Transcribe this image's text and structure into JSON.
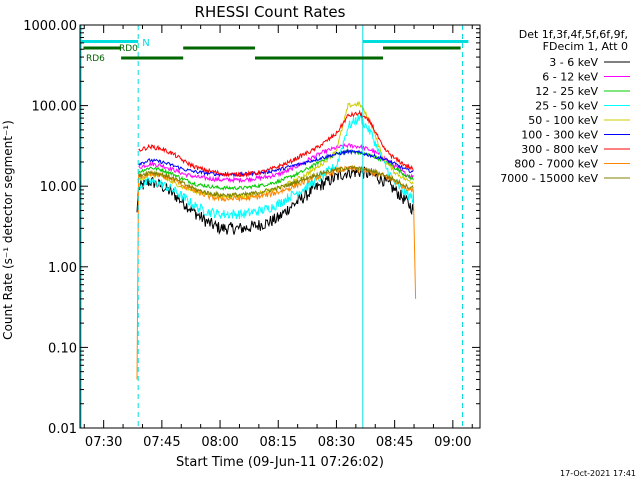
{
  "chart_data": {
    "type": "line",
    "title": "RHESSI Count Rates",
    "xlabel": "Start Time (09-Jun-11 07:26:02)",
    "ylabel": "Count Rate (s⁻¹ detector segment⁻¹)",
    "footer": "17-Oct-2021 17:41",
    "yscale": "log",
    "ylim": [
      0.01,
      1000
    ],
    "xlim_minutes": [
      -6.1,
      97
    ],
    "x_tick_minutes": [
      0,
      15,
      30,
      45,
      60,
      75,
      90
    ],
    "xticks": [
      "07:30",
      "07:45",
      "08:00",
      "08:15",
      "08:30",
      "08:45",
      "09:00"
    ],
    "ytick_values": [
      0.01,
      0.1,
      1,
      10,
      100,
      1000
    ],
    "yticks": [
      "0.01",
      "0.10",
      "1.00",
      "10.00",
      "100.00",
      "1000.00"
    ],
    "grid": false,
    "legend_header": [
      "Det 1f,3f,4f,5f,6f,9f,",
      "FDecim 1, Att 0"
    ],
    "legend_position": "right",
    "x_minutes": [
      9,
      12,
      15,
      18,
      21,
      24,
      27,
      30,
      33,
      36,
      39,
      42,
      45,
      48,
      51,
      54,
      57,
      60,
      63,
      66,
      69,
      72,
      75,
      78,
      80
    ],
    "series": [
      {
        "name": "3 - 6 keV",
        "color": "#000000",
        "values": [
          9.5,
          11.5,
          10,
          8,
          6,
          4.5,
          3.5,
          3,
          3,
          3,
          3.2,
          3.5,
          4,
          5.5,
          7,
          9,
          11,
          13,
          15,
          15,
          14,
          12,
          9,
          6.5,
          5
        ]
      },
      {
        "name": "6 - 12 keV",
        "color": "#ff00ff",
        "values": [
          17,
          19,
          18,
          16,
          14,
          13,
          12.5,
          12,
          12,
          12,
          12.5,
          13,
          14,
          16,
          19,
          23,
          27,
          30,
          32,
          31,
          28,
          23,
          18,
          14,
          13
        ]
      },
      {
        "name": "12 - 25 keV",
        "color": "#00cc00",
        "values": [
          15,
          17,
          16,
          14,
          12,
          10.5,
          10,
          9.5,
          9.5,
          9.5,
          10,
          10.5,
          11.5,
          13,
          15,
          18,
          22,
          25,
          27,
          26,
          24,
          21,
          17,
          13.5,
          12
        ]
      },
      {
        "name": "25 - 50 keV",
        "color": "#00ffff",
        "values": [
          10,
          11.5,
          10.5,
          9,
          7,
          5.5,
          4.8,
          4.5,
          4.5,
          4.5,
          4.8,
          5.2,
          6,
          7.5,
          9,
          11,
          14,
          18,
          55,
          72,
          45,
          20,
          11,
          8,
          7
        ]
      },
      {
        "name": "50 - 100 keV",
        "color": "#cccc00",
        "values": [
          12,
          14,
          13,
          11,
          9.5,
          8.5,
          8,
          7.5,
          7.5,
          7.5,
          8,
          8.5,
          9.5,
          11,
          13,
          16,
          20,
          28,
          100,
          105,
          60,
          22,
          15,
          12,
          11
        ]
      },
      {
        "name": "100 - 300 keV",
        "color": "#0000ff",
        "values": [
          19,
          21,
          20,
          18,
          16,
          15,
          14.5,
          14,
          14,
          14,
          14.5,
          15,
          16,
          17.5,
          19,
          21,
          23,
          25,
          27,
          26,
          24,
          22,
          19,
          16,
          15
        ]
      },
      {
        "name": "300 - 800 keV",
        "color": "#ff0000",
        "values": [
          28,
          31,
          29,
          25,
          20,
          17,
          15.5,
          14.5,
          14,
          14,
          14.5,
          15.5,
          17.5,
          20,
          24,
          28,
          35,
          45,
          75,
          80,
          60,
          30,
          22,
          18,
          16
        ]
      },
      {
        "name": "800 - 7000 keV",
        "color": "#ff8800",
        "values": [
          13,
          14.5,
          13.5,
          12,
          10,
          8.5,
          7.5,
          7,
          7,
          7,
          7.3,
          7.8,
          8.5,
          9.5,
          11,
          12.5,
          14,
          15.5,
          16.5,
          16,
          15,
          13.5,
          11.5,
          9.5,
          9
        ]
      },
      {
        "name": "7000 - 15000 keV",
        "color": "#808000",
        "values": [
          13.5,
          15,
          14,
          12.5,
          10.5,
          9,
          8.2,
          7.8,
          7.8,
          7.8,
          8.2,
          8.8,
          9.5,
          10.5,
          12,
          13.5,
          15,
          16,
          17,
          16.5,
          15.5,
          14,
          12,
          10,
          9.5
        ]
      }
    ],
    "spikes": {
      "start_minute": 8.6,
      "start_value": 0.04,
      "end_minute": 80.4,
      "end_value": 0.4
    },
    "attenuator_markers": [
      {
        "label": "N",
        "minute": 8.9,
        "style": "cyan-dashed"
      },
      {
        "minute": 66.8,
        "style": "cyan-solid"
      },
      {
        "minute": 92.5,
        "style": "cyan-dashed"
      }
    ],
    "state_bars": [
      {
        "label": "RD0",
        "segments": [
          [
            -5.2,
            4.5
          ],
          [
            20.5,
            39
          ],
          [
            72,
            92
          ]
        ]
      },
      {
        "label": "RD6",
        "segments": [
          [
            4.5,
            20.5
          ],
          [
            39,
            72
          ]
        ]
      }
    ],
    "state_bar_colors": {
      "rd0": "#006600",
      "rd6": "#006600",
      "top": "#00dddd"
    },
    "top_bars": [
      [
        -6,
        8.9
      ],
      [
        66.8,
        94
      ]
    ]
  }
}
